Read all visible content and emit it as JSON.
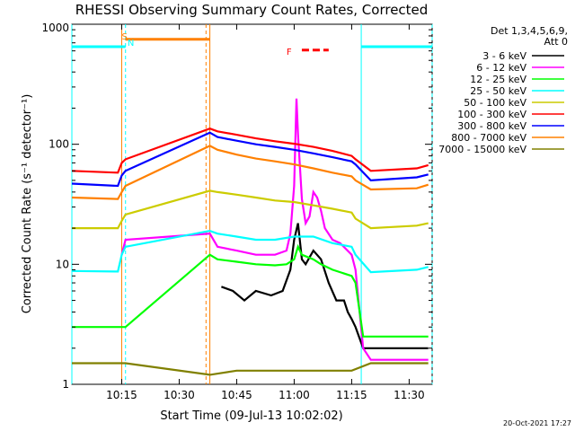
{
  "chart_data": {
    "type": "line",
    "title": "RHESSI Observing Summary Count Rates, Corrected",
    "xlabel": "Start Time (09-Jul-13 10:02:02)",
    "ylabel": "Corrected Count Rate (s⁻¹ detector⁻¹)",
    "yscale": "log",
    "ylim": [
      1,
      1000
    ],
    "xlim": [
      "10:02:02",
      "11:38:00"
    ],
    "xtick_labels": [
      "10:15",
      "10:30",
      "10:45",
      "11:00",
      "11:15",
      "11:30"
    ],
    "xtick_values_min": [
      15,
      30,
      45,
      60,
      75,
      90
    ],
    "ytick_labels": [
      "1",
      "10",
      "100",
      "1000"
    ],
    "ytick_values": [
      1,
      10,
      100,
      1000
    ],
    "legend_header": [
      "Det 1,3,4,5,6,9,",
      "Att 0"
    ],
    "legend_position": "right",
    "timestamp": "20-Oct-2021 17:27",
    "series": [
      {
        "name": "3 - 6 keV",
        "color": "#000000",
        "x": [
          2,
          15,
          16,
          38,
          41,
          44,
          47,
          50,
          54,
          57,
          59,
          60,
          61,
          62,
          63,
          65,
          67,
          69,
          71,
          73,
          74,
          75,
          76,
          78,
          80,
          95
        ],
        "y": [
          null,
          null,
          null,
          null,
          6.5,
          6,
          5,
          6,
          5.5,
          6,
          9,
          16,
          22,
          11,
          10,
          13,
          11,
          7,
          5,
          5,
          4,
          3.5,
          3,
          2,
          2,
          2
        ]
      },
      {
        "name": "6 - 12 keV",
        "color": "#ff00ff",
        "x": [
          2,
          15,
          16,
          38,
          40,
          45,
          50,
          55,
          58,
          59,
          60,
          60.6,
          61,
          62,
          63,
          64,
          65,
          66,
          67,
          68,
          70,
          72,
          75,
          76,
          78,
          80,
          95
        ],
        "y": [
          null,
          12,
          16,
          18,
          14,
          13,
          12,
          12,
          13,
          18,
          45,
          240,
          120,
          35,
          22,
          25,
          40,
          36,
          28,
          20,
          16,
          15,
          12,
          9,
          2,
          1.6,
          1.6
        ]
      },
      {
        "name": "12 - 25 keV",
        "color": "#00ff00",
        "x": [
          2,
          14,
          15,
          16,
          38,
          40,
          45,
          50,
          55,
          58,
          60,
          61,
          62,
          65,
          67,
          70,
          75,
          76,
          78,
          80,
          95
        ],
        "y": [
          3,
          3,
          3,
          3,
          12,
          11,
          10.5,
          10,
          9.8,
          10,
          11,
          14,
          12,
          11,
          10,
          9,
          8,
          7,
          2.5,
          2.5,
          2.5
        ]
      },
      {
        "name": "25 - 50 keV",
        "color": "#00ffff",
        "x": [
          2,
          14,
          15,
          16,
          38,
          40,
          45,
          50,
          55,
          60,
          65,
          70,
          75,
          76,
          80,
          92,
          95
        ],
        "y": [
          8.8,
          8.7,
          12,
          14,
          19,
          18,
          17,
          16,
          16,
          17,
          17,
          15,
          14,
          12,
          8.6,
          9,
          9.5
        ]
      },
      {
        "name": "50 - 100 keV",
        "color": "#cccc00",
        "x": [
          2,
          14,
          15,
          16,
          38,
          40,
          45,
          50,
          55,
          60,
          65,
          70,
          75,
          76,
          80,
          92,
          95
        ],
        "y": [
          20,
          20,
          23,
          26,
          41,
          40,
          38,
          36,
          34,
          33,
          31,
          29,
          27,
          24,
          20,
          21,
          22
        ]
      },
      {
        "name": "100 - 300 keV",
        "color": "#ff0000",
        "x": [
          2,
          14,
          15,
          16,
          38,
          40,
          45,
          50,
          55,
          60,
          65,
          70,
          75,
          76,
          80,
          92,
          95
        ],
        "y": [
          60,
          58,
          70,
          75,
          135,
          128,
          120,
          112,
          106,
          101,
          95,
          88,
          80,
          75,
          60,
          63,
          67
        ]
      },
      {
        "name": "300 - 800 keV",
        "color": "#0000ff",
        "x": [
          2,
          14,
          15,
          16,
          38,
          40,
          45,
          50,
          55,
          60,
          65,
          70,
          75,
          76,
          80,
          92,
          95
        ],
        "y": [
          47,
          45,
          55,
          60,
          125,
          115,
          107,
          100,
          95,
          90,
          84,
          78,
          72,
          68,
          50,
          53,
          56
        ]
      },
      {
        "name": "800 - 7000 keV",
        "color": "#ff8000",
        "x": [
          2,
          14,
          15,
          16,
          38,
          40,
          45,
          50,
          55,
          60,
          65,
          70,
          75,
          76,
          80,
          92,
          95
        ],
        "y": [
          36,
          35,
          40,
          45,
          97,
          90,
          82,
          76,
          72,
          68,
          63,
          58,
          54,
          50,
          42,
          43,
          46
        ]
      },
      {
        "name": "7000 - 15000 keV",
        "color": "#808000",
        "x": [
          2,
          14,
          15,
          16,
          38,
          45,
          55,
          65,
          75,
          80,
          95
        ],
        "y": [
          1.5,
          1.5,
          1.5,
          1.5,
          1.2,
          1.3,
          1.3,
          1.3,
          1.3,
          1.5,
          1.5
        ]
      }
    ],
    "annotations": [
      {
        "text": "S",
        "color": "#ff8000",
        "x_min": 15
      },
      {
        "text": "N",
        "color": "#00ffff",
        "x_min": 16.5
      },
      {
        "text": "F",
        "color": "#ff0000",
        "x_min": 58
      }
    ],
    "state_bars": [
      {
        "color": "#00ffff",
        "x0": 2,
        "x1": 16,
        "y": 650
      },
      {
        "color": "#ff8000",
        "x0": 16,
        "x1": 38,
        "y": 750
      },
      {
        "color": "#ff0000",
        "x0": 62,
        "x1": 69,
        "y": 610
      },
      {
        "color": "#00ffff",
        "x0": 77.5,
        "x1": 96,
        "y": 650
      }
    ],
    "vertical_lines": [
      {
        "color": "#00ffff",
        "style": "solid",
        "x": 2
      },
      {
        "color": "#ff8000",
        "style": "solid",
        "x": 15
      },
      {
        "color": "#00ffff",
        "style": "dashed",
        "x": 16
      },
      {
        "color": "#ff8000",
        "style": "dashed",
        "x": 37
      },
      {
        "color": "#ff8000",
        "style": "solid",
        "x": 38
      },
      {
        "color": "#00ffff",
        "style": "solid",
        "x": 77.5
      },
      {
        "color": "#00ffff",
        "style": "dashed",
        "x": 96
      }
    ]
  }
}
